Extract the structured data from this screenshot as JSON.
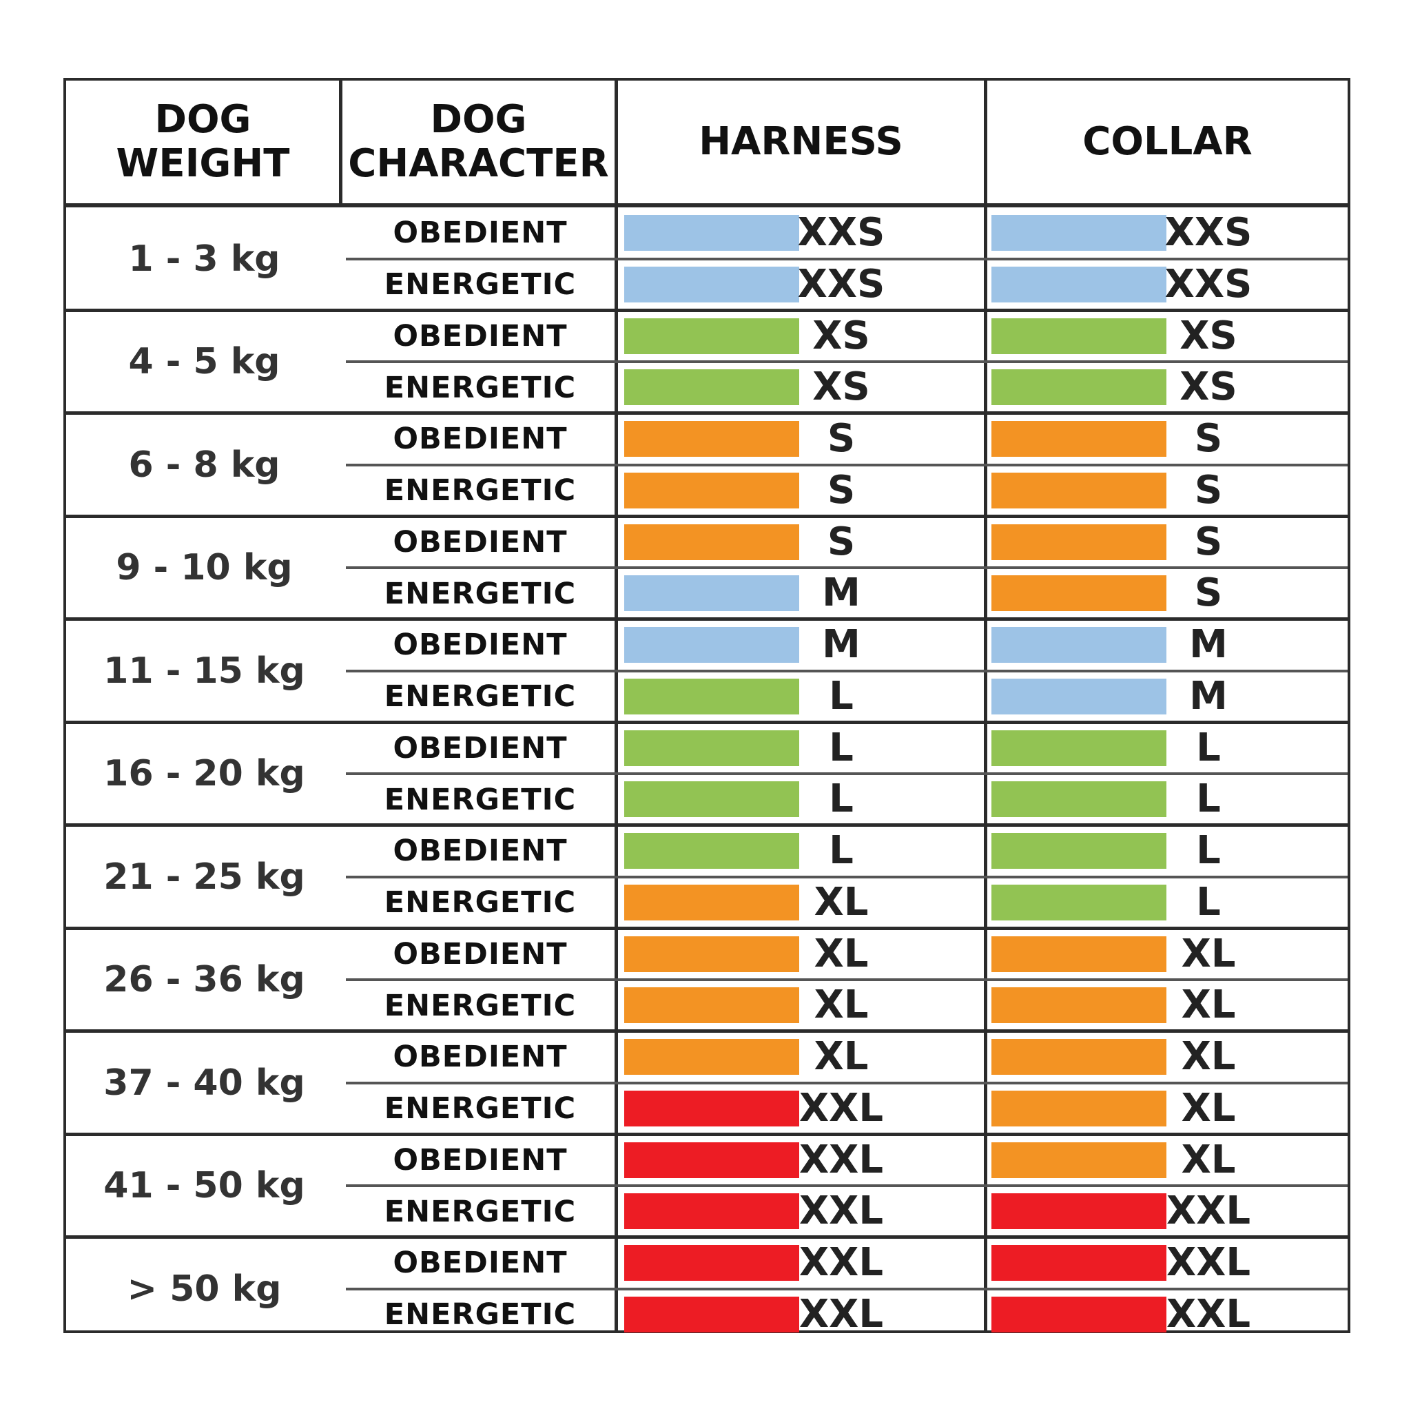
{
  "headers": {
    "weight": "DOG WEIGHT",
    "character": "DOG\nCHARACTER",
    "harness": "HARNESS",
    "collar": "COLLAR"
  },
  "colors": {
    "blue": "#9dc3e6",
    "green": "#92c353",
    "orange": "#f39323",
    "red": "#ed1c24"
  },
  "groups": [
    {
      "weight": "1 - 3 kg",
      "rows": [
        {
          "character": "OBEDIENT",
          "harness": {
            "size": "XXS",
            "color": "blue"
          },
          "collar": {
            "size": "XXS",
            "color": "blue"
          }
        },
        {
          "character": "ENERGETIC",
          "harness": {
            "size": "XXS",
            "color": "blue"
          },
          "collar": {
            "size": "XXS",
            "color": "blue"
          }
        }
      ]
    },
    {
      "weight": "4 - 5 kg",
      "rows": [
        {
          "character": "OBEDIENT",
          "harness": {
            "size": "XS",
            "color": "green"
          },
          "collar": {
            "size": "XS",
            "color": "green"
          }
        },
        {
          "character": "ENERGETIC",
          "harness": {
            "size": "XS",
            "color": "green"
          },
          "collar": {
            "size": "XS",
            "color": "green"
          }
        }
      ]
    },
    {
      "weight": "6 - 8 kg",
      "rows": [
        {
          "character": "OBEDIENT",
          "harness": {
            "size": "S",
            "color": "orange"
          },
          "collar": {
            "size": "S",
            "color": "orange"
          }
        },
        {
          "character": "ENERGETIC",
          "harness": {
            "size": "S",
            "color": "orange"
          },
          "collar": {
            "size": "S",
            "color": "orange"
          }
        }
      ]
    },
    {
      "weight": "9 - 10 kg",
      "rows": [
        {
          "character": "OBEDIENT",
          "harness": {
            "size": "S",
            "color": "orange"
          },
          "collar": {
            "size": "S",
            "color": "orange"
          }
        },
        {
          "character": "ENERGETIC",
          "harness": {
            "size": "M",
            "color": "blue"
          },
          "collar": {
            "size": "S",
            "color": "orange"
          }
        }
      ]
    },
    {
      "weight": "11 - 15 kg",
      "rows": [
        {
          "character": "OBEDIENT",
          "harness": {
            "size": "M",
            "color": "blue"
          },
          "collar": {
            "size": "M",
            "color": "blue"
          }
        },
        {
          "character": "ENERGETIC",
          "harness": {
            "size": "L",
            "color": "green"
          },
          "collar": {
            "size": "M",
            "color": "blue"
          }
        }
      ]
    },
    {
      "weight": "16 - 20 kg",
      "rows": [
        {
          "character": "OBEDIENT",
          "harness": {
            "size": "L",
            "color": "green"
          },
          "collar": {
            "size": "L",
            "color": "green"
          }
        },
        {
          "character": "ENERGETIC",
          "harness": {
            "size": "L",
            "color": "green"
          },
          "collar": {
            "size": "L",
            "color": "green"
          }
        }
      ]
    },
    {
      "weight": "21 - 25 kg",
      "rows": [
        {
          "character": "OBEDIENT",
          "harness": {
            "size": "L",
            "color": "green"
          },
          "collar": {
            "size": "L",
            "color": "green"
          }
        },
        {
          "character": "ENERGETIC",
          "harness": {
            "size": "XL",
            "color": "orange"
          },
          "collar": {
            "size": "L",
            "color": "green"
          }
        }
      ]
    },
    {
      "weight": "26 - 36 kg",
      "rows": [
        {
          "character": "OBEDIENT",
          "harness": {
            "size": "XL",
            "color": "orange"
          },
          "collar": {
            "size": "XL",
            "color": "orange"
          }
        },
        {
          "character": "ENERGETIC",
          "harness": {
            "size": "XL",
            "color": "orange"
          },
          "collar": {
            "size": "XL",
            "color": "orange"
          }
        }
      ]
    },
    {
      "weight": "37 - 40 kg",
      "rows": [
        {
          "character": "OBEDIENT",
          "harness": {
            "size": "XL",
            "color": "orange"
          },
          "collar": {
            "size": "XL",
            "color": "orange"
          }
        },
        {
          "character": "ENERGETIC",
          "harness": {
            "size": "XXL",
            "color": "red"
          },
          "collar": {
            "size": "XL",
            "color": "orange"
          }
        }
      ]
    },
    {
      "weight": "41 - 50 kg",
      "rows": [
        {
          "character": "OBEDIENT",
          "harness": {
            "size": "XXL",
            "color": "red"
          },
          "collar": {
            "size": "XL",
            "color": "orange"
          }
        },
        {
          "character": "ENERGETIC",
          "harness": {
            "size": "XXL",
            "color": "red"
          },
          "collar": {
            "size": "XXL",
            "color": "red"
          }
        }
      ]
    },
    {
      "weight": "> 50 kg",
      "rows": [
        {
          "character": "OBEDIENT",
          "harness": {
            "size": "XXL",
            "color": "red"
          },
          "collar": {
            "size": "XXL",
            "color": "red"
          }
        },
        {
          "character": "ENERGETIC",
          "harness": {
            "size": "XXL",
            "color": "red"
          },
          "collar": {
            "size": "XXL",
            "color": "red"
          }
        }
      ]
    }
  ]
}
